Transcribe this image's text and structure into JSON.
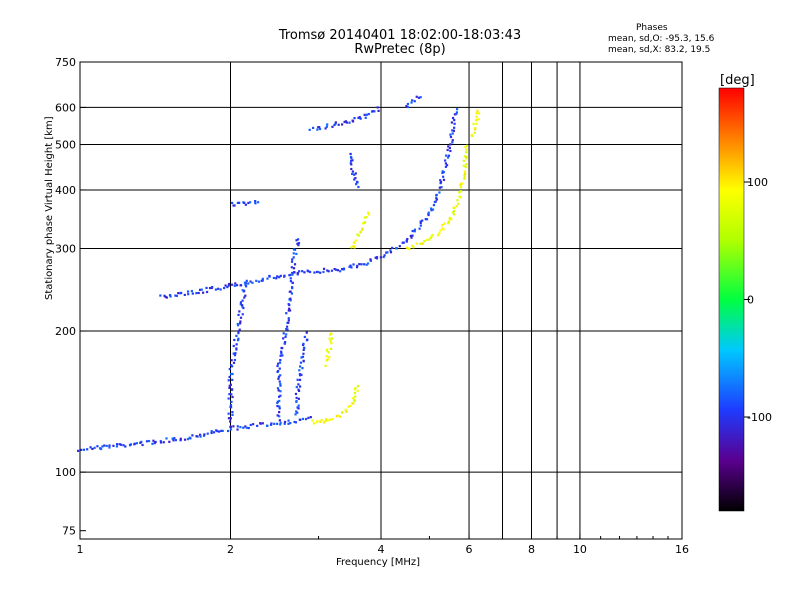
{
  "chart_data": {
    "type": "scatter",
    "title": "Tromsø 20140401 18:02:00-18:03:43",
    "subtitle": "RwPretec (8p)",
    "xlabel": "Frequency [MHz]",
    "ylabel": "Stationary phase Virtual Height [km]",
    "x_scale": "log",
    "y_scale": "log",
    "xlim": [
      1,
      16
    ],
    "ylim": [
      72,
      750
    ],
    "x_ticks": [
      "1",
      "2",
      "4",
      "6",
      "8",
      "10",
      "16"
    ],
    "y_ticks": [
      "75",
      "100",
      "200",
      "300",
      "400",
      "500",
      "600",
      "750"
    ],
    "x_grid": [
      2,
      4,
      6,
      7,
      8,
      9,
      10
    ],
    "y_grid": [
      100,
      200,
      300,
      400,
      500,
      600
    ],
    "grid": true,
    "phase_stats": {
      "label": "Phases",
      "o_line": "mean, sd,O: -95.3, 15.6",
      "x_line": "mean, sd,X:  83.2, 19.5"
    },
    "colorbar": {
      "label": "[deg]",
      "range": [
        -180,
        180
      ],
      "ticks": [
        "100",
        "0",
        "-100"
      ],
      "tick_values": [
        100,
        0,
        -100
      ]
    },
    "series": [
      {
        "mode": "O",
        "phase": -95,
        "traces": [
          [
            [
              1.0,
              112
            ],
            [
              1.1,
              113
            ],
            [
              1.2,
              114
            ],
            [
              1.4,
              116
            ],
            [
              1.6,
              118
            ],
            [
              1.8,
              121
            ],
            [
              2.0,
              124
            ],
            [
              2.3,
              126
            ],
            [
              2.6,
              128
            ],
            [
              2.9,
              130
            ]
          ],
          [
            [
              1.45,
              236
            ],
            [
              1.6,
              240
            ],
            [
              1.8,
              245
            ],
            [
              2.0,
              250
            ],
            [
              2.2,
              255
            ],
            [
              2.5,
              262
            ],
            [
              2.9,
              268
            ],
            [
              3.3,
              271
            ],
            [
              3.7,
              278
            ],
            [
              4.1,
              293
            ],
            [
              4.5,
              312
            ],
            [
              4.9,
              345
            ],
            [
              5.2,
              390
            ],
            [
              5.4,
              450
            ],
            [
              5.55,
              530
            ],
            [
              5.65,
              600
            ]
          ],
          [
            [
              2.0,
              128
            ],
            [
              2.0,
              160
            ],
            [
              2.05,
              190
            ],
            [
              2.1,
              220
            ],
            [
              2.15,
              260
            ]
          ],
          [
            [
              2.5,
              130
            ],
            [
              2.5,
              170
            ],
            [
              2.6,
              210
            ],
            [
              2.65,
              260
            ],
            [
              2.7,
              300
            ],
            [
              2.75,
              320
            ]
          ],
          [
            [
              2.0,
              372
            ],
            [
              2.2,
              375
            ],
            [
              2.3,
              380
            ]
          ],
          [
            [
              2.9,
              540
            ],
            [
              3.2,
              550
            ],
            [
              3.5,
              560
            ],
            [
              3.8,
              580
            ],
            [
              4.0,
              600
            ]
          ],
          [
            [
              3.45,
              480
            ],
            [
              3.5,
              450
            ],
            [
              3.55,
              420
            ],
            [
              3.6,
              400
            ]
          ],
          [
            [
              2.7,
              132
            ],
            [
              2.75,
              160
            ],
            [
              2.8,
              185
            ],
            [
              2.85,
              200
            ]
          ],
          [
            [
              4.5,
              600
            ],
            [
              4.6,
              620
            ],
            [
              4.8,
              640
            ]
          ]
        ]
      },
      {
        "mode": "X",
        "phase": 85,
        "traces": [
          [
            [
              2.9,
              128
            ],
            [
              3.1,
              128
            ],
            [
              3.3,
              132
            ],
            [
              3.5,
              140
            ],
            [
              3.6,
              155
            ]
          ],
          [
            [
              3.5,
              300
            ],
            [
              3.6,
              320
            ],
            [
              3.7,
              340
            ],
            [
              3.8,
              360
            ]
          ],
          [
            [
              4.5,
              300
            ],
            [
              4.8,
              308
            ],
            [
              5.2,
              325
            ],
            [
              5.5,
              345
            ],
            [
              5.7,
              380
            ],
            [
              5.85,
              430
            ],
            [
              5.95,
              500
            ]
          ],
          [
            [
              3.1,
              170
            ],
            [
              3.15,
              185
            ],
            [
              3.2,
              200
            ]
          ],
          [
            [
              6.1,
              520
            ],
            [
              6.2,
              560
            ],
            [
              6.3,
              600
            ]
          ]
        ]
      }
    ]
  }
}
